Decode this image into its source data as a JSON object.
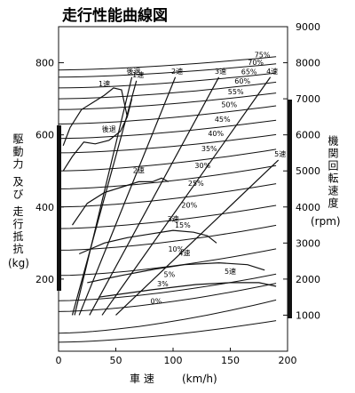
{
  "chart_data": {
    "type": "line",
    "title": "走行性能曲線図",
    "xlabel": "車 速",
    "xunit": "(km/h)",
    "ylabel_left": "駆動力 及び 走行抵抗",
    "yunit_left": "(kg)",
    "ylabel_right": "機関回転速度",
    "yunit_right": "(rpm)",
    "xlim": [
      0,
      200
    ],
    "ylim_left": [
      0,
      900
    ],
    "ylim_right": [
      0,
      9000
    ],
    "x_ticks": [
      "0",
      "50",
      "100",
      "150",
      "200"
    ],
    "left_ticks": [
      "200",
      "400",
      "600",
      "800"
    ],
    "right_ticks": [
      "1000",
      "2000",
      "3000",
      "4000",
      "5000",
      "6000",
      "7000",
      "8000",
      "9000"
    ],
    "gear_lines_rpm": [
      {
        "name": "1速",
        "x": [
          12,
          68
        ],
        "y": [
          1000,
          7500
        ]
      },
      {
        "name": "後退",
        "x": [
          14,
          64
        ],
        "y": [
          1000,
          7600
        ]
      },
      {
        "name": "2速",
        "x": [
          18,
          102
        ],
        "y": [
          1000,
          7600
        ]
      },
      {
        "name": "3速",
        "x": [
          27,
          140
        ],
        "y": [
          1000,
          7600
        ]
      },
      {
        "name": "4速",
        "x": [
          38,
          185
        ],
        "y": [
          1000,
          7600
        ]
      },
      {
        "name": "5速",
        "x": [
          50,
          192
        ],
        "y": [
          1000,
          5300
        ]
      }
    ],
    "driving_force_curves": [
      {
        "name": "1速",
        "x": [
          4,
          10,
          20,
          30,
          40,
          48,
          55,
          60
        ],
        "y": [
          570,
          620,
          670,
          690,
          710,
          730,
          725,
          650
        ]
      },
      {
        "name": "後退",
        "x": [
          4,
          12,
          22,
          32,
          44,
          54,
          60,
          64
        ],
        "y": [
          500,
          540,
          580,
          575,
          585,
          610,
          650,
          700
        ]
      },
      {
        "name": "2速",
        "x": [
          12,
          25,
          40,
          55,
          70,
          82,
          90,
          96
        ],
        "y": [
          350,
          410,
          440,
          455,
          470,
          470,
          480,
          470
        ]
      },
      {
        "name": "3速",
        "x": [
          18,
          40,
          60,
          80,
          100,
          118,
          130,
          138
        ],
        "y": [
          270,
          300,
          315,
          325,
          335,
          330,
          320,
          300
        ]
      },
      {
        "name": "4速",
        "x": [
          25,
          55,
          85,
          110,
          140,
          165,
          180
        ],
        "y": [
          190,
          210,
          228,
          240,
          245,
          240,
          225
        ]
      },
      {
        "name": "5速",
        "x": [
          35,
          80,
          120,
          150,
          175,
          190
        ],
        "y": [
          150,
          170,
          185,
          190,
          190,
          180
        ]
      }
    ],
    "running_resistance": [
      {
        "name": "75%",
        "slope_pct": 75,
        "y0": 780,
        "y200": 820
      },
      {
        "name": "70%",
        "slope_pct": 70,
        "y0": 760,
        "y200": 800
      },
      {
        "name": "65%",
        "slope_pct": 65,
        "y0": 730,
        "y200": 775
      },
      {
        "name": "60%",
        "slope_pct": 60,
        "y0": 700,
        "y200": 750
      },
      {
        "name": "55%",
        "slope_pct": 55,
        "y0": 670,
        "y200": 720
      },
      {
        "name": "50%",
        "slope_pct": 50,
        "y0": 630,
        "y200": 685
      },
      {
        "name": "45%",
        "slope_pct": 45,
        "y0": 590,
        "y200": 645
      },
      {
        "name": "40%",
        "slope_pct": 40,
        "y0": 550,
        "y200": 605
      },
      {
        "name": "35%",
        "slope_pct": 35,
        "y0": 500,
        "y200": 565
      },
      {
        "name": "30%",
        "slope_pct": 30,
        "y0": 450,
        "y200": 520
      },
      {
        "name": "25%",
        "slope_pct": 25,
        "y0": 400,
        "y200": 470
      },
      {
        "name": "20%",
        "slope_pct": 20,
        "y0": 340,
        "y200": 410
      },
      {
        "name": "15%",
        "slope_pct": 15,
        "y0": 280,
        "y200": 355
      },
      {
        "name": "10%",
        "slope_pct": 10,
        "y0": 210,
        "y200": 290
      },
      {
        "name": "5%",
        "slope_pct": 5,
        "y0": 140,
        "y200": 220
      },
      {
        "name": "3%",
        "slope_pct": 3,
        "y0": 110,
        "y200": 195
      },
      {
        "name": "0%",
        "slope_pct": 0,
        "y0": 50,
        "y200": 150
      }
    ],
    "extra_resistance_curves": [
      {
        "name": "",
        "y0": 25,
        "y200": 90
      }
    ]
  }
}
